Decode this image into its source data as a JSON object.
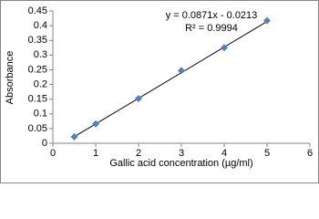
{
  "chart_data": {
    "type": "scatter",
    "x_label": "Gallic acid concentration (µg/ml)",
    "y_label": "Absorbance",
    "annotations": [
      "y = 0.0871x - 0.0213",
      "R² = 0.9994"
    ],
    "series": [
      {
        "color": "#4f81bd",
        "x": [
          0.5,
          1,
          2,
          3,
          4,
          5
        ],
        "values": [
          0.022,
          0.066,
          0.152,
          0.247,
          0.325,
          0.417
        ]
      }
    ],
    "trendline": {
      "slope": 0.0871,
      "intercept": -0.0213,
      "color": "#000000"
    },
    "xlim": [
      0,
      6
    ],
    "xticks": [
      0,
      1,
      2,
      3,
      4,
      5,
      6
    ],
    "ylim": [
      0,
      0.45
    ],
    "yticks": [
      0,
      0.05,
      0.1,
      0.15,
      0.2,
      0.25,
      0.3,
      0.35,
      0.4,
      0.45
    ],
    "grid": false
  }
}
